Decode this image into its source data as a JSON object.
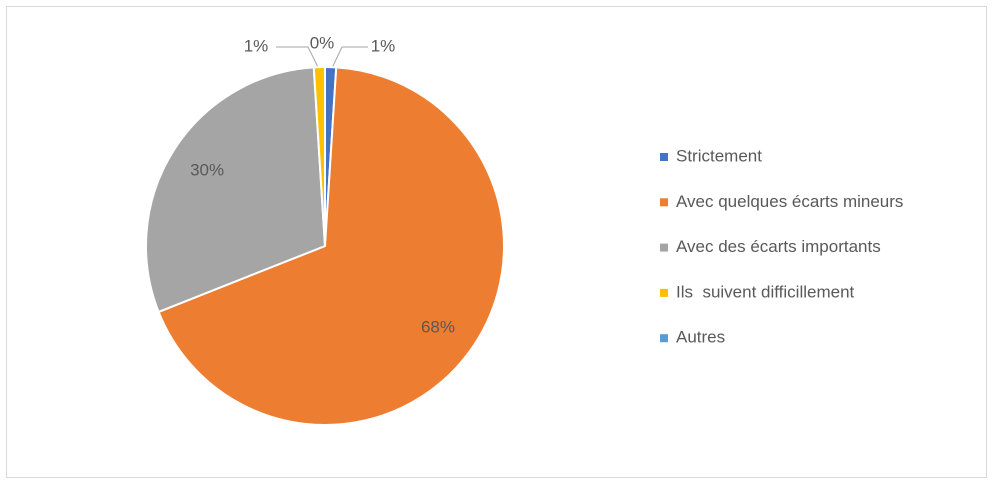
{
  "chart_data": {
    "type": "pie",
    "categories": [
      "Strictement",
      "Avec quelques écarts mineurs",
      "Avec des écarts importants",
      "Ils  suivent difficillement",
      "Autres"
    ],
    "values": [
      1,
      68,
      30,
      1,
      0
    ],
    "value_labels": [
      "1%",
      "68%",
      "30%",
      "1%",
      "0%"
    ],
    "colors": [
      "#4472c4",
      "#ed7d31",
      "#a5a5a5",
      "#ffc000",
      "#5b9bd5"
    ],
    "legend": "right"
  }
}
